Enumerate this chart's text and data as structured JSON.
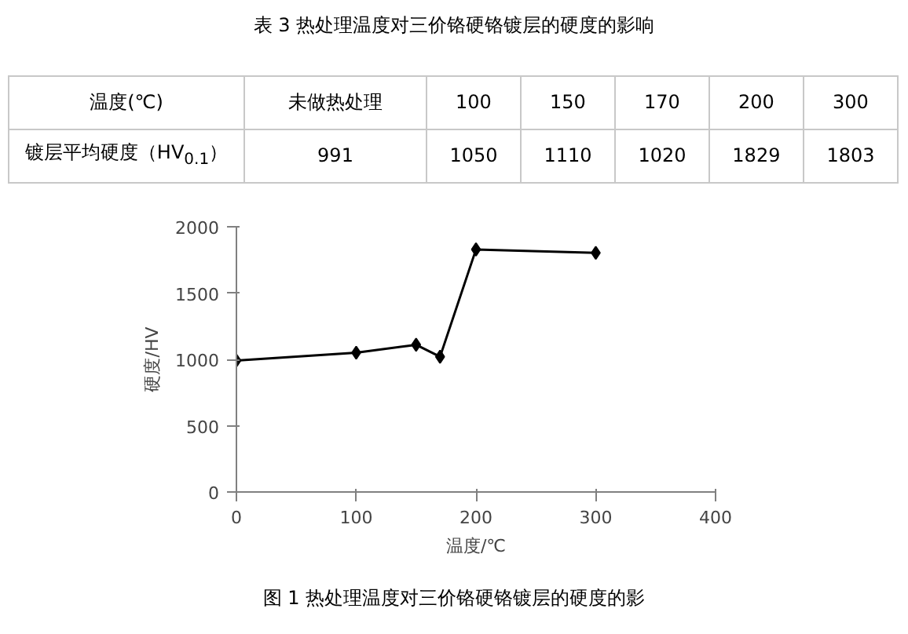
{
  "chart_data": {
    "type": "line",
    "title": "表 3 热处理温度对三价铬硬铬镀层的硬度的影响",
    "xlabel": "温度/℃",
    "ylabel": "硬度/HV",
    "annotations": [
      "温度(℃)",
      "镀层平均硬度（HV$_{0.1}$）",
      "未做热处理",
      "100",
      "150",
      "170",
      "200",
      "300",
      "991",
      "1050",
      "1110",
      "1020",
      "1829",
      "1803",
      "图 1 热处理温度对三价铬硬铬镀层的硬度的影"
    ],
    "x": [
      0,
      100,
      150,
      170,
      200,
      300
    ],
    "series": [
      {
        "color": "#000000",
        "values": [
          991,
          1050,
          1110,
          1020,
          1829,
          1803
        ]
      }
    ],
    "xlim": [
      0,
      400
    ],
    "xticks": [
      0,
      100,
      200,
      300,
      400
    ],
    "ylim": [
      0,
      2000
    ],
    "yticks": [
      0,
      500,
      1000,
      1500,
      2000
    ],
    "grid": false,
    "marker": "diamond",
    "line_style": "solid"
  }
}
